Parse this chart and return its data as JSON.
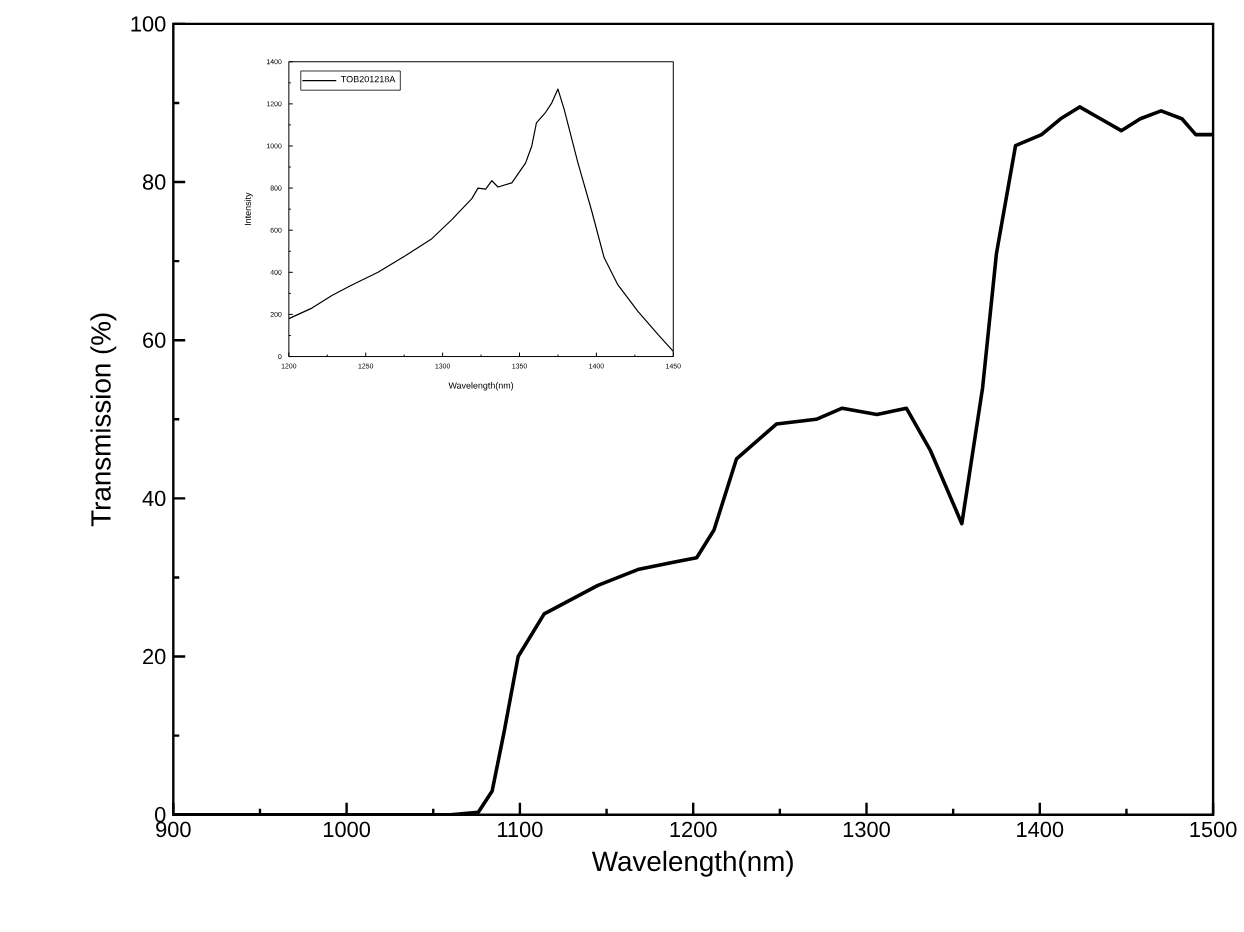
{
  "chart_data": [
    {
      "type": "line",
      "xlabel": "Wavelength(nm)",
      "ylabel": "Transmission (%)",
      "xlim": [
        900,
        1500
      ],
      "ylim": [
        0,
        100
      ],
      "xticks": [
        900,
        1000,
        1100,
        1200,
        1300,
        1400,
        1500
      ],
      "yticks": [
        0,
        20,
        40,
        60,
        80,
        100
      ],
      "grid": false,
      "legend": false,
      "marker": "none",
      "line_style": "solid",
      "series": [
        {
          "color": "#000000",
          "x": [
            900,
            1000,
            1060,
            1076,
            1084,
            1091,
            1099,
            1114,
            1145,
            1168,
            1190,
            1202,
            1212,
            1225,
            1248,
            1271,
            1286,
            1306,
            1323,
            1337,
            1355,
            1367,
            1375,
            1386,
            1401,
            1412,
            1423,
            1435,
            1447,
            1458,
            1470,
            1482,
            1490,
            1500
          ],
          "values": [
            0,
            0,
            0,
            0.3,
            3,
            10.6,
            20,
            25.4,
            29,
            31,
            32,
            32.5,
            36,
            45,
            49.4,
            50,
            51.4,
            50.6,
            51.4,
            46,
            36.8,
            54,
            71,
            84.6,
            86,
            88,
            89.5,
            88,
            86.5,
            88,
            89,
            88,
            86,
            86
          ]
        }
      ]
    },
    {
      "type": "line",
      "xlabel": "Wavelength(nm)",
      "ylabel": "Intensity",
      "xlim": [
        1200,
        1450
      ],
      "ylim": [
        0,
        1400
      ],
      "xticks": [
        1200,
        1250,
        1300,
        1350,
        1400,
        1450
      ],
      "yticks": [
        0,
        200,
        400,
        600,
        800,
        1000,
        1200,
        1400
      ],
      "grid": false,
      "legend": "top left",
      "marker": "none",
      "line_style": "solid",
      "series": [
        {
          "name": "TOB201218A",
          "color": "#000000",
          "x": [
            1200,
            1215,
            1228,
            1241,
            1258,
            1276,
            1293,
            1306,
            1319,
            1323,
            1328,
            1332,
            1336,
            1345,
            1354,
            1358,
            1361,
            1367,
            1371,
            1375,
            1379,
            1388,
            1397,
            1405,
            1414,
            1427,
            1440,
            1450
          ],
          "values": [
            180,
            230,
            290,
            340,
            400,
            480,
            560,
            650,
            750,
            800,
            795,
            835,
            805,
            825,
            920,
            1000,
            1110,
            1160,
            1205,
            1270,
            1175,
            920,
            690,
            470,
            340,
            215,
            105,
            25
          ]
        }
      ]
    }
  ]
}
